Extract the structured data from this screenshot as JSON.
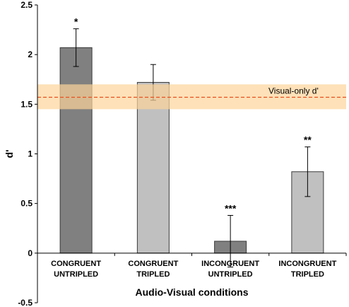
{
  "chart_data": {
    "type": "bar",
    "title": "",
    "xlabel": "Audio-Visual conditions",
    "ylabel": "d'",
    "ylim": [
      -0.5,
      2.5
    ],
    "yticks": [
      -0.5,
      0,
      0.5,
      1,
      1.5,
      2,
      2.5
    ],
    "ytick_labels": [
      "-0.5",
      "0",
      "0.5",
      "1",
      "1.5",
      "2",
      "2.5"
    ],
    "grid": false,
    "categories": [
      [
        "CONGRUENT",
        "UNTRIPLED"
      ],
      [
        "CONGRUENT",
        "TRIPLED"
      ],
      [
        "INCONGRUENT",
        "UNTRIPLED"
      ],
      [
        "INCONGRUENT",
        "TRIPLED"
      ]
    ],
    "values": [
      2.07,
      1.72,
      0.12,
      0.82
    ],
    "errors": [
      0.19,
      0.18,
      0.26,
      0.25
    ],
    "significance": [
      "*",
      "",
      "***",
      "**"
    ],
    "bar_colors": [
      "#808080",
      "#c0c0c0",
      "#808080",
      "#c0c0c0"
    ],
    "reference": {
      "label": "Visual-only d'",
      "value": 1.57,
      "band": [
        1.45,
        1.7
      ],
      "line_color": "#e8501f",
      "band_color": "#fdd49a"
    }
  }
}
